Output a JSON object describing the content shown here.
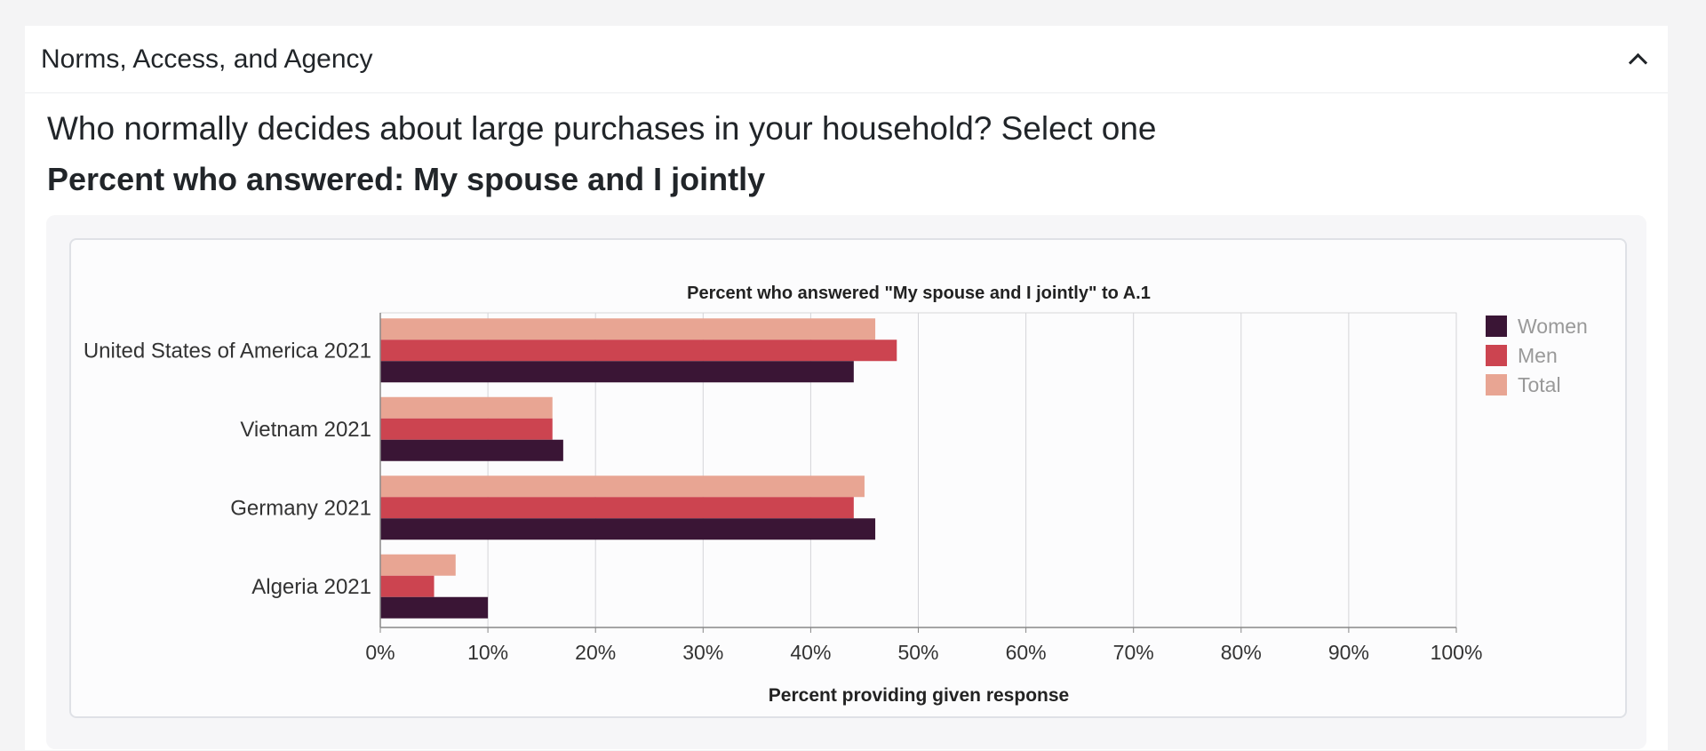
{
  "section": {
    "title": "Norms, Access, and Agency",
    "question": "Who normally decides about large purchases in your household? Select one",
    "answer_heading": "Percent who answered: My spouse and I jointly"
  },
  "chart_data": {
    "type": "bar",
    "orientation": "horizontal",
    "title": "Percent who answered \"My spouse and I jointly\" to A.1",
    "xlabel": "Percent providing given response",
    "ylabel": "",
    "xlim": [
      0,
      100
    ],
    "x_ticks": [
      "0%",
      "10%",
      "20%",
      "30%",
      "40%",
      "50%",
      "60%",
      "70%",
      "80%",
      "90%",
      "100%"
    ],
    "grid": "vertical",
    "legend_position": "right",
    "categories": [
      "United States of America 2021",
      "Vietnam 2021",
      "Germany 2021",
      "Algeria 2021"
    ],
    "series": [
      {
        "name": "Women",
        "color": "#3a1535",
        "values": [
          44,
          17,
          46,
          10
        ]
      },
      {
        "name": "Men",
        "color": "#cc4450",
        "values": [
          48,
          16,
          44,
          5
        ]
      },
      {
        "name": "Total",
        "color": "#e8a593",
        "values": [
          46,
          16,
          45,
          7
        ]
      }
    ]
  }
}
